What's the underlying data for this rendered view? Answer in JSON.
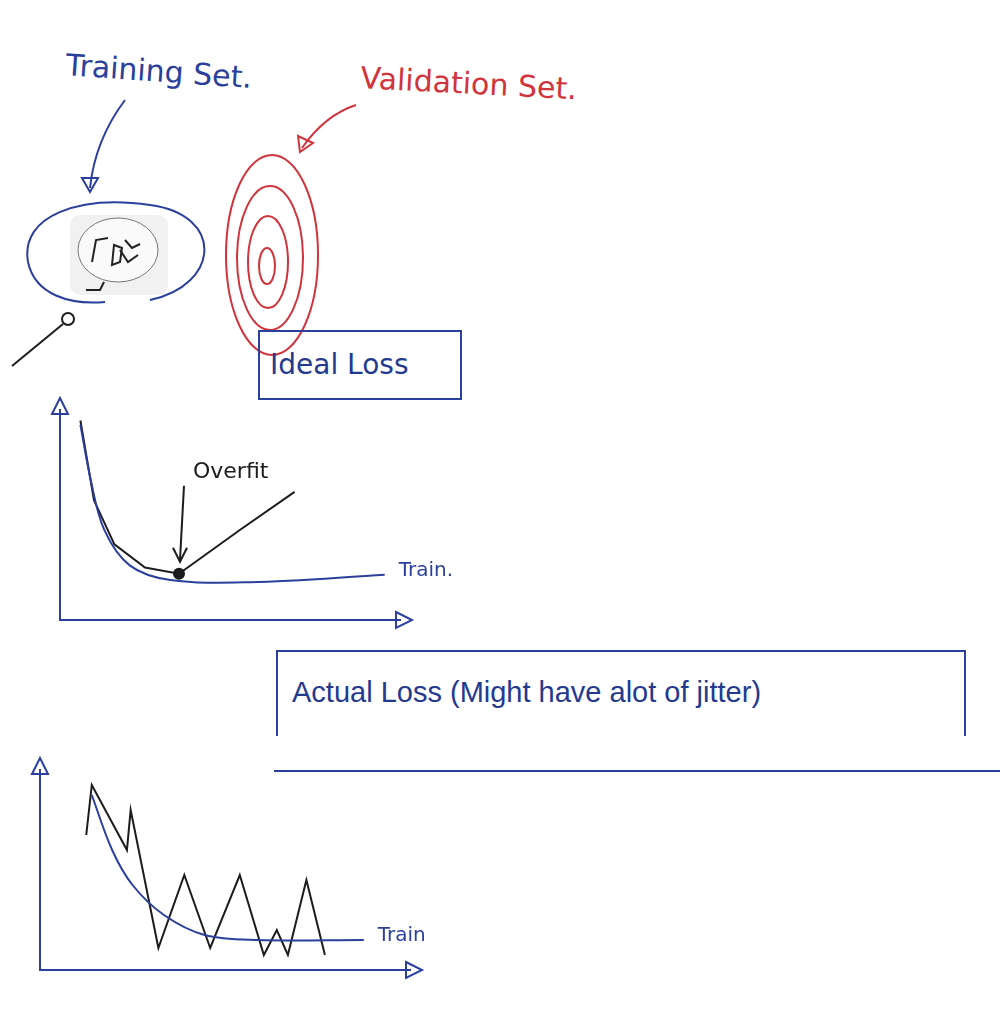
{
  "diagram": {
    "training_set": {
      "label": "Training Set."
    },
    "validation_set": {
      "label": "Validation Set."
    }
  },
  "chart_data": [
    {
      "type": "line",
      "title": "Ideal Loss",
      "xlim": [
        0,
        10
      ],
      "ylim": [
        0,
        10
      ],
      "grid": false,
      "tick_labels": false,
      "series": [
        {
          "name": "Train.",
          "color": "#2b3f9c",
          "x": [
            0.6,
            0.9,
            1.3,
            2.05,
            3.25,
            5.6,
            9.55
          ],
          "values": [
            9.3,
            6.7,
            4.3,
            2.6,
            1.9,
            1.8,
            2.15
          ]
        },
        {
          "color": "#1c1c1c",
          "x": [
            0.6,
            1.0,
            1.6,
            2.5,
            3.5,
            5.3,
            6.9
          ],
          "values": [
            9.5,
            5.7,
            3.6,
            2.5,
            2.2,
            4.3,
            6.1
          ]
        }
      ],
      "annotations": [
        {
          "text": "Overfit",
          "x": 3.5,
          "y": 2.2
        }
      ]
    },
    {
      "type": "line",
      "title": "Actual Loss (Might have alot of jitter)",
      "xlim": [
        0,
        10
      ],
      "ylim": [
        0,
        10
      ],
      "grid": false,
      "tick_labels": false,
      "series": [
        {
          "name": "Train",
          "color": "#2b3f9c",
          "x": [
            1.4,
            1.95,
            2.5,
            3.35,
            4.45,
            5.85,
            8.75
          ],
          "values": [
            8.75,
            6.0,
            4.25,
            2.75,
            1.75,
            1.5,
            1.5
          ]
        },
        {
          "color": "#1c1c1c",
          "x": [
            1.25,
            1.4,
            2.35,
            2.45,
            3.2,
            3.9,
            4.6,
            5.4,
            6.05,
            6.4,
            6.7,
            7.2,
            7.7
          ],
          "values": [
            6.75,
            9.25,
            6.0,
            8.0,
            1.1,
            4.75,
            1.1,
            4.75,
            0.75,
            2.0,
            0.75,
            4.5,
            0.75
          ]
        }
      ]
    }
  ]
}
